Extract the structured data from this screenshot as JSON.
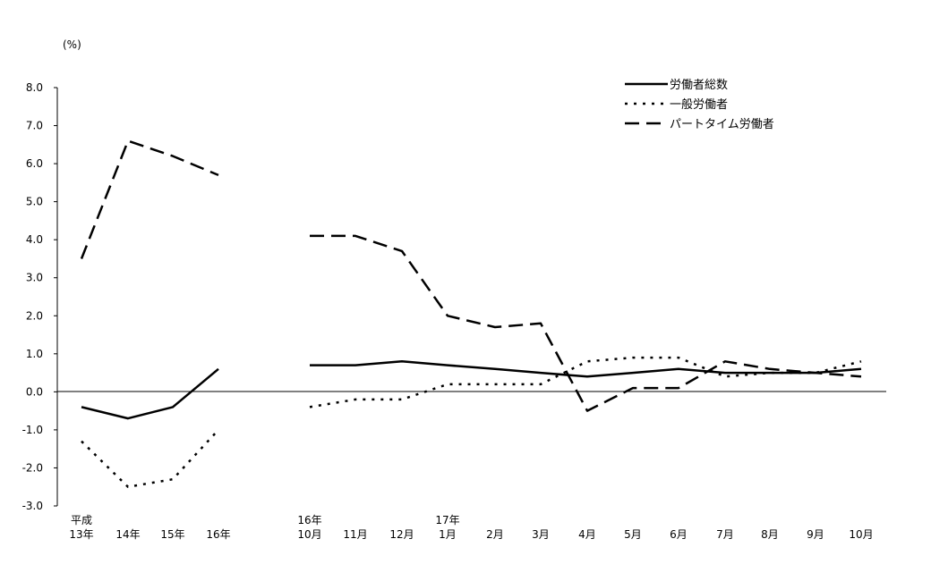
{
  "chart_data": {
    "type": "line",
    "unit_label": "(%)",
    "ylim": [
      -3.0,
      8.0
    ],
    "y_ticks": [
      "8.0",
      "7.0",
      "6.0",
      "5.0",
      "4.0",
      "3.0",
      "2.0",
      "1.0",
      "0.0",
      "-1.0",
      "-2.0",
      "-3.0"
    ],
    "categories": [
      {
        "lines": [
          "平成",
          "13年"
        ]
      },
      {
        "lines": [
          "",
          "14年"
        ]
      },
      {
        "lines": [
          "",
          "15年"
        ]
      },
      {
        "lines": [
          "",
          "16年"
        ]
      },
      {
        "lines": [
          "16年",
          "10月"
        ]
      },
      {
        "lines": [
          "",
          "11月"
        ]
      },
      {
        "lines": [
          "",
          "12月"
        ]
      },
      {
        "lines": [
          "17年",
          "1月"
        ]
      },
      {
        "lines": [
          "",
          "2月"
        ]
      },
      {
        "lines": [
          "",
          "3月"
        ]
      },
      {
        "lines": [
          "",
          "4月"
        ]
      },
      {
        "lines": [
          "",
          "5月"
        ]
      },
      {
        "lines": [
          "",
          "6月"
        ]
      },
      {
        "lines": [
          "",
          "7月"
        ]
      },
      {
        "lines": [
          "",
          "8月"
        ]
      },
      {
        "lines": [
          "",
          "9月"
        ]
      },
      {
        "lines": [
          "",
          "10月"
        ]
      }
    ],
    "segments": [
      [
        0,
        3
      ],
      [
        4,
        16
      ]
    ],
    "series": [
      {
        "name": "労働者総数",
        "dash": "solid",
        "values": [
          -0.4,
          -0.7,
          -0.4,
          0.6,
          0.7,
          0.7,
          0.8,
          0.7,
          0.6,
          0.5,
          0.4,
          0.5,
          0.6,
          0.5,
          0.5,
          0.5,
          0.6
        ]
      },
      {
        "name": "一般労働者",
        "dash": "dotted",
        "values": [
          -1.3,
          -2.5,
          -2.3,
          -1.0,
          -0.4,
          -0.2,
          -0.2,
          0.2,
          0.2,
          0.2,
          0.8,
          0.9,
          0.9,
          0.4,
          0.5,
          0.5,
          0.8
        ]
      },
      {
        "name": "パートタイム労働者",
        "dash": "dashed",
        "values": [
          3.5,
          6.6,
          6.2,
          5.7,
          4.1,
          4.1,
          3.7,
          2.0,
          1.7,
          1.8,
          -0.5,
          0.1,
          0.1,
          0.8,
          0.6,
          0.5,
          0.4
        ]
      }
    ],
    "legend_position": "top-right",
    "grid": false
  }
}
